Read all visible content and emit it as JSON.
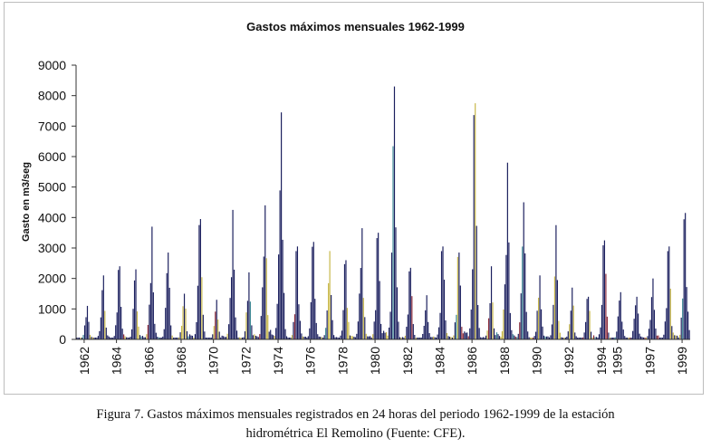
{
  "figure": {
    "caption_line1": "Figura 7. Gastos máximos mensuales registrados en 24 horas del periodo 1962-1999 de la estación",
    "caption_line2": "hidrométrica El Remolino (Fuente: CFE)."
  },
  "chart_data": {
    "type": "bar",
    "title": "Gastos máximos mensuales 1962-1999",
    "xlabel": "",
    "ylabel": "Gasto en m3/seg",
    "ylim": [
      0,
      9000
    ],
    "yticks": [
      "0",
      "1000",
      "2000",
      "3000",
      "4000",
      "5000",
      "6000",
      "7000",
      "8000",
      "9000"
    ],
    "xticks": [
      "1962",
      "1964",
      "1966",
      "1968",
      "1970",
      "1972",
      "1974",
      "1976",
      "1978",
      "1980",
      "1982",
      "1984",
      "1986",
      "1988",
      "1990",
      "1992",
      "1994",
      "1995",
      "1997",
      "1999"
    ],
    "x_range": [
      "1962-01",
      "1999-12"
    ],
    "grid": false,
    "legend": "none",
    "series_colors": [
      "#1b1f5e",
      "#c8b84a",
      "#8b2a3a",
      "#3f8a96"
    ],
    "annual_peaks": [
      {
        "year": "1962",
        "value": 1100
      },
      {
        "year": "1963",
        "value": 2100
      },
      {
        "year": "1964",
        "value": 2400
      },
      {
        "year": "1965",
        "value": 2300
      },
      {
        "year": "1966",
        "value": 3700
      },
      {
        "year": "1967",
        "value": 2850
      },
      {
        "year": "1968",
        "value": 1500
      },
      {
        "year": "1969",
        "value": 3950
      },
      {
        "year": "1970",
        "value": 1300
      },
      {
        "year": "1971",
        "value": 4250
      },
      {
        "year": "1972",
        "value": 2200
      },
      {
        "year": "1973",
        "value": 4400
      },
      {
        "year": "1974",
        "value": 7450
      },
      {
        "year": "1975",
        "value": 3050
      },
      {
        "year": "1976",
        "value": 3200
      },
      {
        "year": "1977",
        "value": 2900
      },
      {
        "year": "1978",
        "value": 2600
      },
      {
        "year": "1979",
        "value": 3650
      },
      {
        "year": "1980",
        "value": 3500
      },
      {
        "year": "1981",
        "value": 8300
      },
      {
        "year": "1982",
        "value": 2350
      },
      {
        "year": "1983",
        "value": 1450
      },
      {
        "year": "1984",
        "value": 3050
      },
      {
        "year": "1985",
        "value": 2850
      },
      {
        "year": "1986",
        "value": 7750
      },
      {
        "year": "1987",
        "value": 2400
      },
      {
        "year": "1988",
        "value": 5800
      },
      {
        "year": "1989",
        "value": 4500
      },
      {
        "year": "1990",
        "value": 2100
      },
      {
        "year": "1991",
        "value": 3750
      },
      {
        "year": "1992",
        "value": 1700
      },
      {
        "year": "1993",
        "value": 1400
      },
      {
        "year": "1994",
        "value": 3250
      },
      {
        "year": "1995",
        "value": 1550
      },
      {
        "year": "1996",
        "value": 1400
      },
      {
        "year": "1997",
        "value": 2000
      },
      {
        "year": "1998",
        "value": 3050
      },
      {
        "year": "1999",
        "value": 4150
      }
    ]
  }
}
